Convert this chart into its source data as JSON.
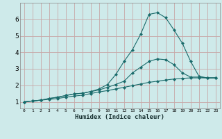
{
  "xlabel": "Humidex (Indice chaleur)",
  "ylabel": "",
  "bg_color": "#ceeaea",
  "grid_color": "#c8a8a8",
  "line_color": "#1a6b6b",
  "xlim": [
    -0.5,
    23.5
  ],
  "ylim": [
    0.6,
    7.0
  ],
  "yticks": [
    1,
    2,
    3,
    4,
    5,
    6
  ],
  "xticks": [
    0,
    1,
    2,
    3,
    4,
    5,
    6,
    7,
    8,
    9,
    10,
    11,
    12,
    13,
    14,
    15,
    16,
    17,
    18,
    19,
    20,
    21,
    22,
    23
  ],
  "line1_x": [
    0,
    1,
    2,
    3,
    4,
    5,
    6,
    7,
    8,
    9,
    10,
    11,
    12,
    13,
    14,
    15,
    16,
    17,
    18,
    19,
    20,
    21,
    22,
    23
  ],
  "line1_y": [
    1.0,
    1.05,
    1.1,
    1.15,
    1.2,
    1.28,
    1.35,
    1.4,
    1.5,
    1.6,
    1.68,
    1.78,
    1.88,
    1.98,
    2.08,
    2.18,
    2.25,
    2.32,
    2.38,
    2.42,
    2.45,
    2.45,
    2.45,
    2.45
  ],
  "line2_x": [
    0,
    1,
    2,
    3,
    4,
    5,
    6,
    7,
    8,
    9,
    10,
    11,
    12,
    13,
    14,
    15,
    16,
    17,
    18,
    19,
    20,
    21,
    22,
    23
  ],
  "line2_y": [
    1.0,
    1.05,
    1.1,
    1.2,
    1.28,
    1.38,
    1.48,
    1.52,
    1.62,
    1.72,
    1.88,
    2.05,
    2.25,
    2.75,
    3.1,
    3.45,
    3.6,
    3.55,
    3.25,
    2.75,
    2.5,
    2.5,
    2.45,
    2.45
  ],
  "line3_x": [
    0,
    1,
    2,
    3,
    4,
    5,
    6,
    7,
    8,
    9,
    10,
    11,
    12,
    13,
    14,
    15,
    16,
    17,
    18,
    19,
    20,
    21,
    22,
    23
  ],
  "line3_y": [
    1.0,
    1.05,
    1.1,
    1.2,
    1.28,
    1.38,
    1.48,
    1.52,
    1.62,
    1.78,
    2.05,
    2.65,
    3.45,
    4.15,
    5.1,
    6.3,
    6.4,
    6.1,
    5.35,
    4.55,
    3.45,
    2.55,
    2.45,
    2.45
  ],
  "xlabel_fontsize": 6.5,
  "xtick_fontsize": 4.5,
  "ytick_fontsize": 6.5
}
